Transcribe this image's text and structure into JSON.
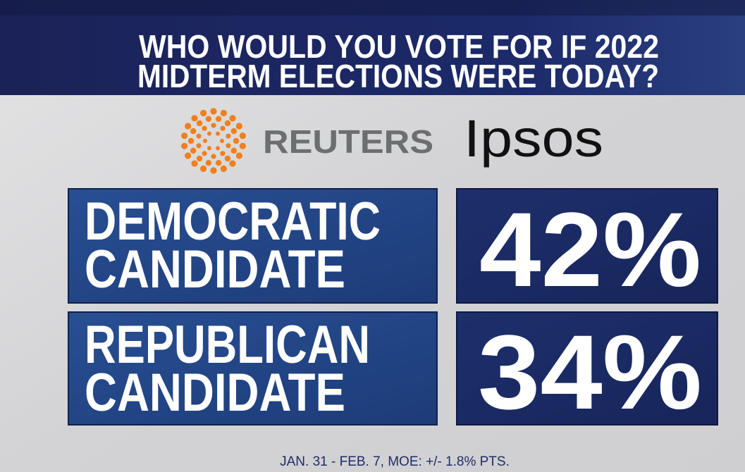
{
  "header": {
    "title_lines": [
      "WHO WOULD YOU VOTE FOR IF 2022",
      "MIDTERM ELECTIONS WERE TODAY?"
    ]
  },
  "logos": {
    "reuters": "REUTERS",
    "ipsos": "Ipsos"
  },
  "rows": [
    {
      "label_lines": [
        "DEMOCRATIC",
        "CANDIDATE"
      ],
      "value": "42%"
    },
    {
      "label_lines": [
        "REPUBLICAN",
        "CANDIDATE"
      ],
      "value": "34%"
    }
  ],
  "footer": "JAN. 31 - FEB. 7, MOE: +/- 1.8% PTS."
}
